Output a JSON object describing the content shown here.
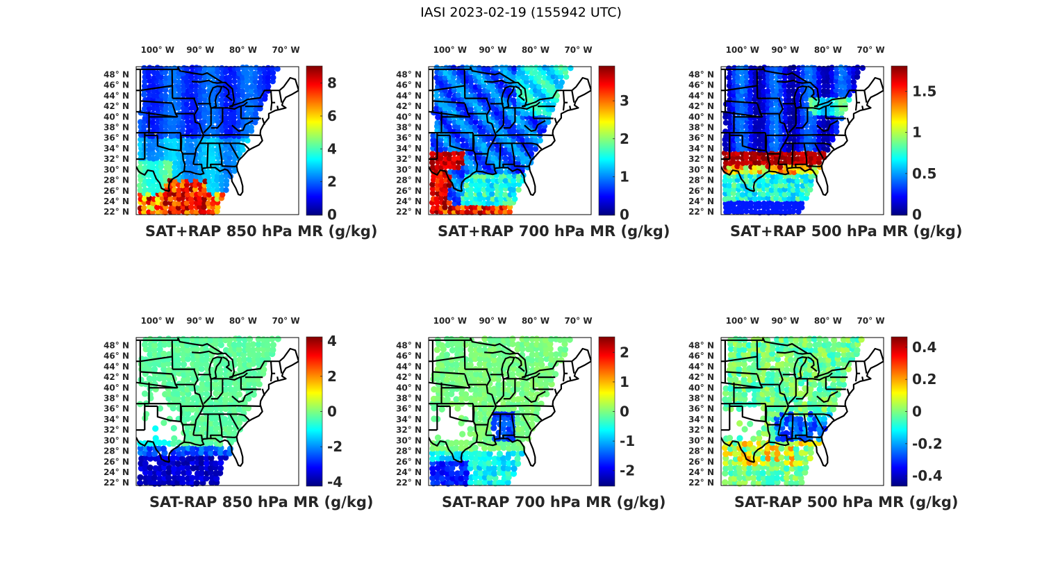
{
  "figure_title": "IASI 2023-02-19 (155942 UTC)",
  "colormap": "jet",
  "colors": {
    "state_lines": "#000000",
    "axis_text": "#262626",
    "jet_stops": [
      "#00007f",
      "#0000ff",
      "#007fff",
      "#00ffff",
      "#7fff7f",
      "#ffff00",
      "#ff7f00",
      "#ff0000",
      "#7f0000"
    ]
  },
  "chart_data": [
    {
      "type": "heatmap",
      "id": "sat_rap_850",
      "title": "SAT+RAP 850 hPa MR (g/kg)",
      "x_ticks": [
        "100° W",
        "90° W",
        "80° W",
        "70° W"
      ],
      "y_ticks": [
        "48° N",
        "46° N",
        "44° N",
        "42° N",
        "40° N",
        "38° N",
        "36° N",
        "34° N",
        "32° N",
        "30° N",
        "28° N",
        "26° N",
        "24° N",
        "22° N"
      ],
      "colorbar": {
        "min": 0,
        "max": 9,
        "ticks": [
          0,
          2,
          4,
          6,
          8
        ],
        "tick_labels": [
          "0",
          "2",
          "4",
          "6",
          "8"
        ]
      },
      "field_description": "Mostly 1–2 g/kg over central/northern US; 3–4 g/kg over TX; >8 g/kg over western Gulf of Mexico"
    },
    {
      "type": "heatmap",
      "id": "sat_rap_700",
      "title": "SAT+RAP 700 hPa MR (g/kg)",
      "x_ticks": [
        "100° W",
        "90° W",
        "80° W",
        "70° W"
      ],
      "y_ticks": [
        "48° N",
        "46° N",
        "44° N",
        "42° N",
        "40° N",
        "38° N",
        "36° N",
        "34° N",
        "32° N",
        "30° N",
        "28° N",
        "26° N",
        "24° N",
        "22° N"
      ],
      "colorbar": {
        "min": 0,
        "max": 3.9,
        "ticks": [
          0,
          1,
          2,
          3
        ],
        "tick_labels": [
          "0",
          "1",
          "2",
          "3"
        ]
      },
      "field_description": "Mostly 0.5–1 g/kg north; band of 3–3.9 g/kg over west TX near 32° N; elevated values over Gulf"
    },
    {
      "type": "heatmap",
      "id": "sat_rap_500",
      "title": "SAT+RAP 500 hPa MR (g/kg)",
      "x_ticks": [
        "100° W",
        "90° W",
        "80° W",
        "70° W"
      ],
      "y_ticks": [
        "48° N",
        "46° N",
        "44° N",
        "42° N",
        "40° N",
        "38° N",
        "36° N",
        "34° N",
        "32° N",
        "30° N",
        "28° N",
        "26° N",
        "24° N",
        "22° N"
      ],
      "colorbar": {
        "min": 0,
        "max": 1.8,
        "ticks": [
          0,
          0.5,
          1,
          1.5
        ],
        "tick_labels": [
          "0",
          "0.5",
          "1",
          "1.5"
        ]
      },
      "field_description": "Mostly 0.1–0.5 g/kg; strong moist band 1.6–1.8 g/kg along ~31–33° N from TX to GA"
    },
    {
      "type": "heatmap",
      "id": "sat_minus_rap_850",
      "title": "SAT-RAP 850 hPa MR (g/kg)",
      "x_ticks": [
        "100° W",
        "90° W",
        "80° W",
        "70° W"
      ],
      "y_ticks": [
        "48° N",
        "46° N",
        "44° N",
        "42° N",
        "40° N",
        "38° N",
        "36° N",
        "34° N",
        "32° N",
        "30° N",
        "28° N",
        "26° N",
        "24° N",
        "22° N"
      ],
      "colorbar": {
        "min": -4.2,
        "max": 4.2,
        "ticks": [
          -4,
          -2,
          0,
          2,
          4
        ],
        "tick_labels": [
          "-4",
          "-2",
          "0",
          "2",
          "4"
        ]
      },
      "field_description": "Near 0 over continental US; -3 to -4 g/kg over western Gulf; small positive spots near LA coast"
    },
    {
      "type": "heatmap",
      "id": "sat_minus_rap_700",
      "title": "SAT-RAP 700 hPa MR (g/kg)",
      "x_ticks": [
        "100° W",
        "90° W",
        "80° W",
        "70° W"
      ],
      "y_ticks": [
        "48° N",
        "46° N",
        "44° N",
        "42° N",
        "40° N",
        "38° N",
        "36° N",
        "34° N",
        "32° N",
        "30° N",
        "28° N",
        "26° N",
        "24° N",
        "22° N"
      ],
      "colorbar": {
        "min": -2.5,
        "max": 2.5,
        "ticks": [
          -2,
          -1,
          0,
          1,
          2
        ],
        "tick_labels": [
          "-2",
          "-1",
          "0",
          "1",
          "2"
        ]
      },
      "field_description": "Near 0 north; -1 to -2 g/kg over AL/MS and southwest Gulf"
    },
    {
      "type": "heatmap",
      "id": "sat_minus_rap_500",
      "title": "SAT-RAP 500 hPa MR (g/kg)",
      "x_ticks": [
        "100° W",
        "90° W",
        "80° W",
        "70° W"
      ],
      "y_ticks": [
        "48° N",
        "46° N",
        "44° N",
        "42° N",
        "40° N",
        "38° N",
        "36° N",
        "34° N",
        "32° N",
        "30° N",
        "28° N",
        "26° N",
        "24° N",
        "22° N"
      ],
      "colorbar": {
        "min": -0.46,
        "max": 0.46,
        "ticks": [
          -0.4,
          -0.2,
          0,
          0.2,
          0.4
        ],
        "tick_labels": [
          "-0.4",
          "-0.2",
          "0",
          "0.2",
          "0.4"
        ]
      },
      "field_description": "Mixed -0.1 to 0.1 over central US; negative (-0.3 to -0.4) over southeast; positive streaks in Gulf"
    }
  ]
}
